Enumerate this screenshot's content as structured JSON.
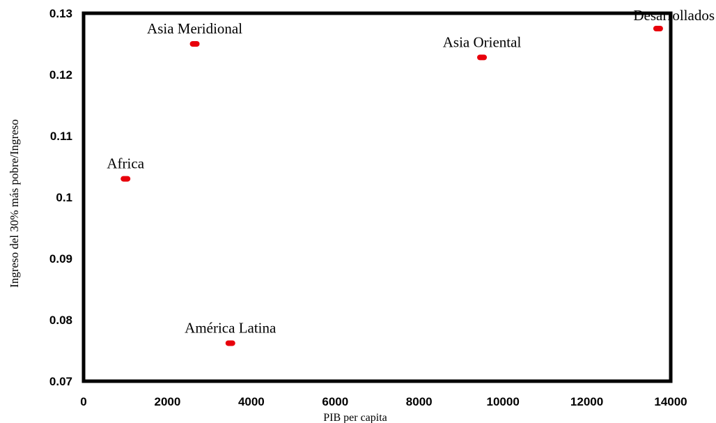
{
  "chart_data": {
    "type": "scatter",
    "title": "",
    "xlabel": "PIB per capita",
    "ylabel": "Ingreso del 30% más pobre/Ingreso",
    "xlim": [
      0,
      14000
    ],
    "ylim": [
      0.07,
      0.13
    ],
    "grid": false,
    "x_ticks": [
      "0",
      "2000",
      "4000",
      "6000",
      "8000",
      "10000",
      "12000",
      "14000"
    ],
    "y_ticks": [
      "0.07",
      "0.08",
      "0.09",
      "0.1",
      "0.11",
      "0.12",
      "0.13"
    ],
    "points": [
      {
        "label": "Asia Meridional",
        "x": 2650,
        "y": 0.125
      },
      {
        "label": "Asia Oriental",
        "x": 9500,
        "y": 0.1228
      },
      {
        "label": "Desarrollados",
        "x": 13700,
        "y": 0.1275
      },
      {
        "label": "Africa",
        "x": 1000,
        "y": 0.103
      },
      {
        "label": "América Latina",
        "x": 3500,
        "y": 0.0762
      }
    ],
    "marker_color": "#e8000b"
  }
}
